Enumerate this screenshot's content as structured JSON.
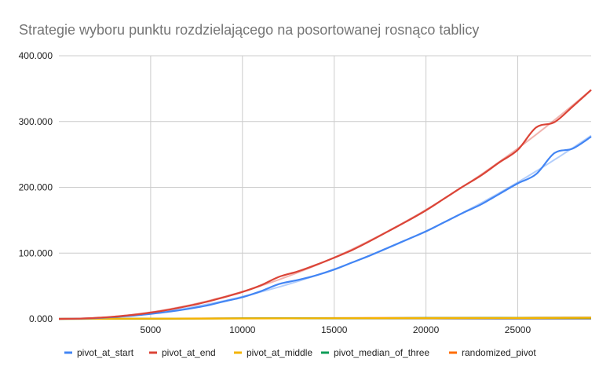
{
  "chart_data": {
    "type": "line",
    "title": "Strategie wyboru punktu rozdzielającego na posortowanej rosnąco tablicy",
    "xlabel": "",
    "ylabel": "",
    "xlim": [
      0,
      29000
    ],
    "ylim": [
      0,
      400000
    ],
    "x_ticks": [
      5000,
      10000,
      15000,
      20000,
      25000
    ],
    "x_tick_labels": [
      "5000",
      "10000",
      "15000",
      "20000",
      "25000"
    ],
    "y_ticks": [
      0,
      100000,
      200000,
      300000,
      400000
    ],
    "y_tick_labels": [
      "0.000",
      "100.000",
      "200.000",
      "300.000",
      "400.000"
    ],
    "grid": true,
    "legend_position": "bottom",
    "trendlines": true,
    "series": [
      {
        "name": "pivot_at_start",
        "color": "#4285f4",
        "points": [
          [
            0,
            0
          ],
          [
            1000,
            300
          ],
          [
            2000,
            1200
          ],
          [
            3000,
            2800
          ],
          [
            4000,
            4800
          ],
          [
            5000,
            7500
          ],
          [
            6000,
            11000
          ],
          [
            7000,
            15000
          ],
          [
            8000,
            20000
          ],
          [
            9000,
            26500
          ],
          [
            10000,
            33000
          ],
          [
            11000,
            42000
          ],
          [
            12000,
            53000
          ],
          [
            13000,
            59000
          ],
          [
            14000,
            66000
          ],
          [
            15000,
            75000
          ],
          [
            16000,
            86000
          ],
          [
            17000,
            97000
          ],
          [
            18000,
            109000
          ],
          [
            19000,
            121000
          ],
          [
            20000,
            133000
          ],
          [
            21000,
            147000
          ],
          [
            22000,
            161000
          ],
          [
            23000,
            174000
          ],
          [
            24000,
            190000
          ],
          [
            25000,
            206000
          ],
          [
            26000,
            220000
          ],
          [
            27000,
            252000
          ],
          [
            28000,
            259000
          ],
          [
            29000,
            277000
          ]
        ]
      },
      {
        "name": "pivot_at_end",
        "color": "#db4437",
        "points": [
          [
            0,
            0
          ],
          [
            1000,
            400
          ],
          [
            2000,
            1500
          ],
          [
            3000,
            3300
          ],
          [
            4000,
            6000
          ],
          [
            5000,
            9500
          ],
          [
            6000,
            14000
          ],
          [
            7000,
            19500
          ],
          [
            8000,
            25500
          ],
          [
            9000,
            33000
          ],
          [
            10000,
            41000
          ],
          [
            11000,
            51000
          ],
          [
            12000,
            64000
          ],
          [
            13000,
            72000
          ],
          [
            14000,
            82000
          ],
          [
            15000,
            93000
          ],
          [
            16000,
            105000
          ],
          [
            17000,
            119000
          ],
          [
            18000,
            134000
          ],
          [
            19000,
            149000
          ],
          [
            20000,
            165000
          ],
          [
            21000,
            183000
          ],
          [
            22000,
            201000
          ],
          [
            23000,
            218000
          ],
          [
            24000,
            238000
          ],
          [
            25000,
            257000
          ],
          [
            26000,
            291000
          ],
          [
            27000,
            299000
          ],
          [
            28000,
            323000
          ],
          [
            29000,
            348000
          ]
        ]
      },
      {
        "name": "pivot_at_middle",
        "color": "#f4b400",
        "points": [
          [
            0,
            0
          ],
          [
            5000,
            300
          ],
          [
            10000,
            600
          ],
          [
            15000,
            900
          ],
          [
            20000,
            1100
          ],
          [
            25000,
            1300
          ],
          [
            29000,
            1500
          ]
        ]
      },
      {
        "name": "pivot_median_of_three",
        "color": "#0f9d58",
        "points": [
          [
            0,
            0
          ],
          [
            5000,
            350
          ],
          [
            10000,
            700
          ],
          [
            15000,
            1000
          ],
          [
            20000,
            1300
          ],
          [
            25000,
            1500
          ],
          [
            29000,
            1700
          ]
        ]
      },
      {
        "name": "randomized_pivot",
        "color": "#ff6d01",
        "points": [
          [
            0,
            0
          ],
          [
            5000,
            400
          ],
          [
            10000,
            800
          ],
          [
            15000,
            1150
          ],
          [
            20000,
            1450
          ],
          [
            25000,
            1700
          ],
          [
            29000,
            1950
          ]
        ]
      }
    ]
  }
}
